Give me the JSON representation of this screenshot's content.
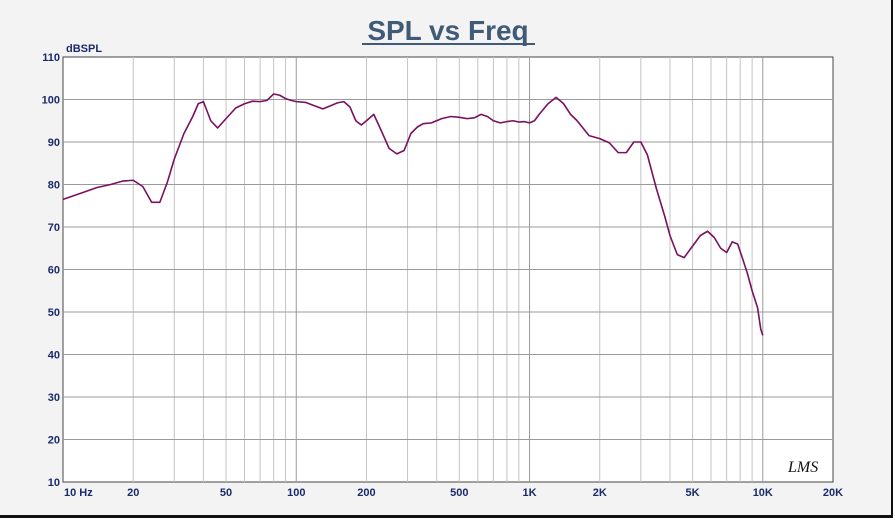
{
  "chart_data": {
    "type": "line",
    "title": "SPL vs Freq",
    "ylabel": "dBSPL",
    "xlabel": "",
    "x_scale": "log",
    "xlim": [
      10,
      20000
    ],
    "ylim": [
      10,
      110
    ],
    "grid": true,
    "watermark": "LMS",
    "y_ticks": [
      {
        "value": 10,
        "label": "10"
      },
      {
        "value": 20,
        "label": "20"
      },
      {
        "value": 30,
        "label": "30"
      },
      {
        "value": 40,
        "label": "40"
      },
      {
        "value": 50,
        "label": "50"
      },
      {
        "value": 60,
        "label": "60"
      },
      {
        "value": 70,
        "label": "70"
      },
      {
        "value": 80,
        "label": "80"
      },
      {
        "value": 90,
        "label": "90"
      },
      {
        "value": 100,
        "label": "100"
      },
      {
        "value": 110,
        "label": "110"
      }
    ],
    "x_ticks": [
      {
        "value": 10,
        "label": "10  Hz"
      },
      {
        "value": 20,
        "label": "20"
      },
      {
        "value": 50,
        "label": "50"
      },
      {
        "value": 100,
        "label": "100"
      },
      {
        "value": 200,
        "label": "200"
      },
      {
        "value": 500,
        "label": "500"
      },
      {
        "value": 1000,
        "label": "1K"
      },
      {
        "value": 2000,
        "label": "2K"
      },
      {
        "value": 5000,
        "label": "5K"
      },
      {
        "value": 10000,
        "label": "10K"
      },
      {
        "value": 20000,
        "label": "20K"
      }
    ],
    "series": [
      {
        "color": "#7a1060",
        "x": [
          10,
          12,
          14,
          16,
          18,
          20,
          22,
          24,
          26,
          28,
          30,
          33,
          36,
          38,
          40,
          43,
          46,
          50,
          55,
          60,
          65,
          70,
          75,
          80,
          85,
          90,
          95,
          100,
          110,
          120,
          130,
          140,
          150,
          160,
          170,
          180,
          190,
          200,
          215,
          230,
          250,
          270,
          290,
          310,
          330,
          350,
          380,
          420,
          460,
          500,
          540,
          580,
          620,
          660,
          700,
          750,
          800,
          850,
          900,
          950,
          1000,
          1050,
          1100,
          1200,
          1300,
          1400,
          1500,
          1600,
          1800,
          2000,
          2200,
          2400,
          2600,
          2800,
          3000,
          3200,
          3500,
          3800,
          4000,
          4300,
          4600,
          5000,
          5400,
          5800,
          6200,
          6600,
          7000,
          7400,
          7800,
          8200,
          8600,
          9000,
          9500,
          9800,
          10000
        ],
        "y": [
          76.5,
          78.0,
          79.3,
          80.0,
          80.8,
          81.0,
          79.5,
          75.8,
          75.8,
          80.5,
          86.0,
          92.0,
          96.0,
          99.0,
          99.5,
          95.0,
          93.3,
          95.5,
          98.0,
          99.0,
          99.6,
          99.5,
          99.8,
          101.3,
          101.0,
          100.2,
          99.8,
          99.5,
          99.3,
          98.5,
          97.8,
          98.5,
          99.2,
          99.5,
          98.2,
          95.0,
          94.0,
          95.0,
          96.5,
          93.0,
          88.5,
          87.2,
          88.0,
          92.0,
          93.5,
          94.3,
          94.5,
          95.5,
          96.0,
          95.8,
          95.5,
          95.7,
          96.5,
          96.0,
          95.0,
          94.5,
          94.8,
          95.0,
          94.7,
          94.8,
          94.5,
          95.0,
          96.5,
          99.0,
          100.5,
          99.0,
          96.5,
          95.0,
          91.5,
          90.8,
          89.8,
          87.5,
          87.5,
          90.0,
          90.0,
          87.0,
          79.0,
          72.5,
          68.0,
          63.5,
          62.8,
          65.5,
          68.0,
          69.0,
          67.5,
          65.0,
          64.0,
          66.5,
          66.0,
          62.5,
          59.0,
          55.0,
          51.0,
          46.0,
          44.5
        ]
      }
    ]
  }
}
